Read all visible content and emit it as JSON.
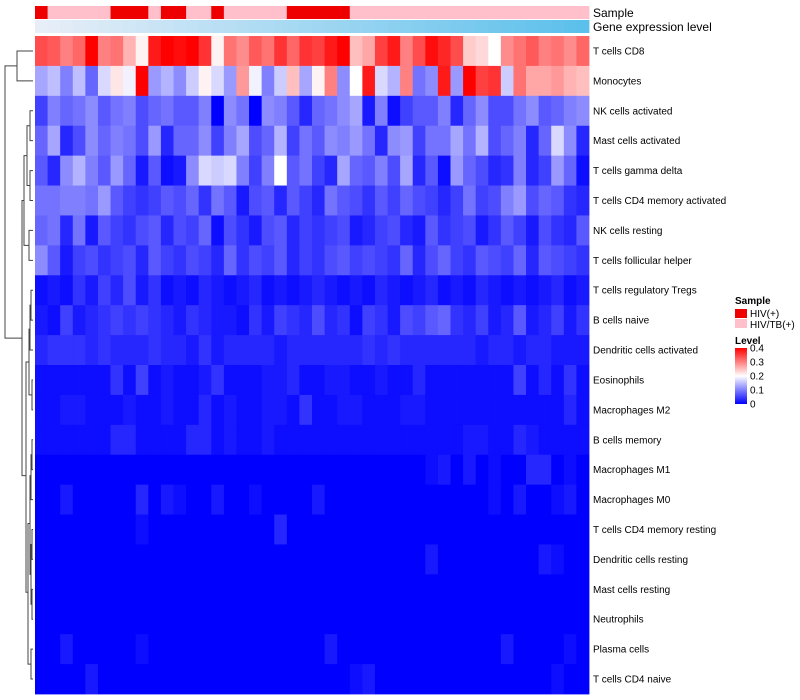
{
  "chart_data": {
    "type": "heatmap",
    "title": "",
    "column_annotations": [
      {
        "label": "Sample"
      },
      {
        "label": "Gene expression level"
      }
    ],
    "rows": [
      "T cells CD8",
      "Monocytes",
      "NK cells activated",
      "Mast cells activated",
      "T cells gamma delta",
      "T cells CD4 memory activated",
      "NK cells resting",
      "T cells follicular helper",
      "T cells regulatory  Tregs",
      "B cells naive",
      "Dendritic cells activated",
      "Eosinophils",
      "Macrophages M2",
      "B cells memory",
      "Macrophages M1",
      "Macrophages M0",
      "T cells CD4 memory resting",
      "Dendritic cells resting",
      "Mast cells resting",
      "Neutrophils",
      "Plasma cells",
      "T cells CD4 naive"
    ],
    "n_columns": 44,
    "sample_groups": [
      {
        "name": "HIV(+)",
        "color": "#ee0000"
      },
      {
        "name": "HIV/TB(+)",
        "color": "#ffc0cb"
      }
    ],
    "sample_assignment": [
      0,
      1,
      1,
      1,
      1,
      1,
      0,
      0,
      0,
      1,
      0,
      0,
      1,
      1,
      0,
      1,
      1,
      1,
      1,
      1,
      0,
      0,
      0,
      0,
      0,
      1,
      1,
      1,
      1,
      1,
      1,
      1,
      1,
      1,
      1,
      1,
      1,
      1,
      1,
      1,
      1,
      1,
      1,
      1
    ],
    "expression_gradient": {
      "start": "#e8eef8",
      "end": "#5bc0eb"
    },
    "color_scale": {
      "title": "Level",
      "min": 0,
      "max": 0.4,
      "ticks": [
        "0.4",
        "0.3",
        "0.2",
        "0.1",
        "0"
      ],
      "tick_values": [
        0.4,
        0.3,
        0.2,
        0.1,
        0
      ],
      "colors": [
        "#0000ff",
        "#ffffff",
        "#ff0000"
      ]
    },
    "legend": {
      "sample_title": "Sample",
      "level_title": "Level",
      "placement": "right"
    },
    "values": [
      [
        0.34,
        0.33,
        0.3,
        0.32,
        0.4,
        0.3,
        0.31,
        0.26,
        0.21,
        0.38,
        0.4,
        0.39,
        0.4,
        0.36,
        0.21,
        0.31,
        0.29,
        0.33,
        0.31,
        0.36,
        0.32,
        0.36,
        0.35,
        0.38,
        0.4,
        0.25,
        0.27,
        0.35,
        0.38,
        0.3,
        0.34,
        0.39,
        0.37,
        0.34,
        0.24,
        0.23,
        0.2,
        0.29,
        0.31,
        0.33,
        0.3,
        0.31,
        0.29,
        0.32
      ],
      [
        0.13,
        0.15,
        0.1,
        0.15,
        0.08,
        0.17,
        0.22,
        0.19,
        0.4,
        0.12,
        0.14,
        0.11,
        0.16,
        0.21,
        0.17,
        0.12,
        0.28,
        0.19,
        0.1,
        0.16,
        0.25,
        0.13,
        0.21,
        0.3,
        0.11,
        0.2,
        0.38,
        0.17,
        0.14,
        0.3,
        0.09,
        0.11,
        0.38,
        0.12,
        0.4,
        0.35,
        0.36,
        0.16,
        0.31,
        0.27,
        0.27,
        0.28,
        0.26,
        0.25
      ],
      [
        0.05,
        0.1,
        0.08,
        0.09,
        0.11,
        0.07,
        0.09,
        0.1,
        0.06,
        0.08,
        0.09,
        0.07,
        0.07,
        0.1,
        0.0,
        0.11,
        0.09,
        0.0,
        0.11,
        0.1,
        0.07,
        0.03,
        0.08,
        0.09,
        0.11,
        0.13,
        0.02,
        0.1,
        0.01,
        0.05,
        0.07,
        0.07,
        0.1,
        0.03,
        0.08,
        0.11,
        0.06,
        0.06,
        0.09,
        0.11,
        0.07,
        0.08,
        0.1,
        0.11
      ],
      [
        0.08,
        0.13,
        0.03,
        0.06,
        0.11,
        0.08,
        0.1,
        0.09,
        0.06,
        0.12,
        0.03,
        0.08,
        0.08,
        0.11,
        0.05,
        0.1,
        0.13,
        0.06,
        0.08,
        0.14,
        0.05,
        0.09,
        0.07,
        0.11,
        0.1,
        0.12,
        0.09,
        0.03,
        0.11,
        0.12,
        0.05,
        0.09,
        0.09,
        0.13,
        0.09,
        0.14,
        0.06,
        0.08,
        0.1,
        0.03,
        0.08,
        0.17,
        0.11,
        0.03
      ],
      [
        0.07,
        0.03,
        0.11,
        0.14,
        0.1,
        0.07,
        0.12,
        0.08,
        0.02,
        0.07,
        0.01,
        0.02,
        0.11,
        0.17,
        0.16,
        0.17,
        0.1,
        0.05,
        0.1,
        0.2,
        0.07,
        0.09,
        0.05,
        0.03,
        0.13,
        0.08,
        0.07,
        0.1,
        0.06,
        0.13,
        0.03,
        0.07,
        0.01,
        0.12,
        0.08,
        0.06,
        0.03,
        0.04,
        0.1,
        0.03,
        0.05,
        0.12,
        0.08,
        0.01
      ],
      [
        0.09,
        0.09,
        0.1,
        0.1,
        0.09,
        0.12,
        0.07,
        0.05,
        0.04,
        0.05,
        0.07,
        0.06,
        0.08,
        0.04,
        0.09,
        0.07,
        0.02,
        0.06,
        0.07,
        0.03,
        0.07,
        0.05,
        0.03,
        0.09,
        0.07,
        0.06,
        0.04,
        0.07,
        0.05,
        0.08,
        0.06,
        0.05,
        0.03,
        0.05,
        0.09,
        0.05,
        0.06,
        0.1,
        0.12,
        0.06,
        0.08,
        0.07,
        0.04,
        0.03
      ],
      [
        0.08,
        0.09,
        0.03,
        0.09,
        0.02,
        0.07,
        0.05,
        0.04,
        0.06,
        0.07,
        0.03,
        0.06,
        0.05,
        0.08,
        0.01,
        0.06,
        0.04,
        0.02,
        0.06,
        0.07,
        0.03,
        0.05,
        0.04,
        0.05,
        0.06,
        0.02,
        0.03,
        0.05,
        0.06,
        0.03,
        0.02,
        0.07,
        0.04,
        0.05,
        0.06,
        0.02,
        0.04,
        0.07,
        0.05,
        0.02,
        0.06,
        0.04,
        0.03,
        0.07
      ],
      [
        0.11,
        0.07,
        0.02,
        0.05,
        0.06,
        0.04,
        0.05,
        0.06,
        0.03,
        0.07,
        0.05,
        0.04,
        0.06,
        0.05,
        0.03,
        0.08,
        0.04,
        0.06,
        0.05,
        0.07,
        0.03,
        0.05,
        0.04,
        0.06,
        0.07,
        0.05,
        0.06,
        0.05,
        0.04,
        0.08,
        0.03,
        0.06,
        0.08,
        0.05,
        0.04,
        0.07,
        0.06,
        0.05,
        0.08,
        0.03,
        0.07,
        0.06,
        0.05,
        0.04
      ],
      [
        0.01,
        0.02,
        0.01,
        0.04,
        0.02,
        0.05,
        0.03,
        0.06,
        0.02,
        0.04,
        0.01,
        0.02,
        0.01,
        0.03,
        0.02,
        0.01,
        0.02,
        0.03,
        0.01,
        0.02,
        0.01,
        0.02,
        0.03,
        0.02,
        0.01,
        0.02,
        0.01,
        0.03,
        0.02,
        0.01,
        0.02,
        0.03,
        0.01,
        0.02,
        0.01,
        0.03,
        0.02,
        0.01,
        0.02,
        0.01,
        0.02,
        0.03,
        0.01,
        0.02
      ],
      [
        0.02,
        0.01,
        0.05,
        0.02,
        0.03,
        0.04,
        0.05,
        0.04,
        0.05,
        0.04,
        0.03,
        0.02,
        0.04,
        0.03,
        0.02,
        0.02,
        0.01,
        0.04,
        0.02,
        0.05,
        0.04,
        0.03,
        0.06,
        0.03,
        0.04,
        0.01,
        0.05,
        0.04,
        0.02,
        0.06,
        0.05,
        0.07,
        0.08,
        0.04,
        0.03,
        0.05,
        0.02,
        0.03,
        0.07,
        0.02,
        0.03,
        0.05,
        0.02,
        0.04
      ],
      [
        0.03,
        0.04,
        0.04,
        0.04,
        0.03,
        0.04,
        0.03,
        0.03,
        0.03,
        0.04,
        0.03,
        0.03,
        0.02,
        0.04,
        0.02,
        0.03,
        0.03,
        0.03,
        0.03,
        0.02,
        0.03,
        0.03,
        0.03,
        0.03,
        0.03,
        0.03,
        0.04,
        0.03,
        0.04,
        0.03,
        0.03,
        0.03,
        0.03,
        0.03,
        0.03,
        0.02,
        0.03,
        0.03,
        0.02,
        0.03,
        0.03,
        0.02,
        0.02,
        0.02
      ],
      [
        0.01,
        0.01,
        0.01,
        0.01,
        0.01,
        0.01,
        0.04,
        0.01,
        0.05,
        0.01,
        0.02,
        0.01,
        0.01,
        0.02,
        0.04,
        0.01,
        0.01,
        0.01,
        0.02,
        0.02,
        0.03,
        0.01,
        0.01,
        0.02,
        0.02,
        0.01,
        0.01,
        0.02,
        0.01,
        0.01,
        0.03,
        0.01,
        0.01,
        0.01,
        0.01,
        0.01,
        0.01,
        0.01,
        0.05,
        0.01,
        0.03,
        0.01,
        0.04,
        0.01
      ],
      [
        0.01,
        0.01,
        0.02,
        0.02,
        0.01,
        0.01,
        0.01,
        0.02,
        0.01,
        0.01,
        0.02,
        0.01,
        0.01,
        0.03,
        0.01,
        0.02,
        0.01,
        0.01,
        0.02,
        0.02,
        0.01,
        0.04,
        0.01,
        0.01,
        0.02,
        0.02,
        0.01,
        0.01,
        0.01,
        0.02,
        0.02,
        0.01,
        0.01,
        0.01,
        0.01,
        0.01,
        0.01,
        0.01,
        0.01,
        0.01,
        0.01,
        0.01,
        0.03,
        0.01
      ],
      [
        0.01,
        0.01,
        0.01,
        0.01,
        0.01,
        0.01,
        0.03,
        0.03,
        0.01,
        0.01,
        0.01,
        0.01,
        0.03,
        0.03,
        0.01,
        0.02,
        0.01,
        0.01,
        0.02,
        0.01,
        0.01,
        0.01,
        0.01,
        0.01,
        0.01,
        0.01,
        0.01,
        0.01,
        0.01,
        0.01,
        0.01,
        0.01,
        0.01,
        0.01,
        0.02,
        0.02,
        0.01,
        0.01,
        0.03,
        0.02,
        0.01,
        0.01,
        0.01,
        0.01
      ],
      [
        0.0,
        0.0,
        0.0,
        0.0,
        0.0,
        0.0,
        0.0,
        0.0,
        0.0,
        0.0,
        0.0,
        0.0,
        0.0,
        0.0,
        0.0,
        0.0,
        0.0,
        0.0,
        0.0,
        0.0,
        0.0,
        0.0,
        0.0,
        0.0,
        0.0,
        0.0,
        0.0,
        0.0,
        0.0,
        0.0,
        0.0,
        0.01,
        0.02,
        0.0,
        0.02,
        0.0,
        0.01,
        0.0,
        0.0,
        0.03,
        0.03,
        0.0,
        0.01,
        0.0
      ],
      [
        0.0,
        0.0,
        0.02,
        0.0,
        0.0,
        0.0,
        0.0,
        0.0,
        0.03,
        0.0,
        0.02,
        0.01,
        0.0,
        0.0,
        0.02,
        0.0,
        0.0,
        0.01,
        0.0,
        0.0,
        0.0,
        0.0,
        0.02,
        0.0,
        0.0,
        0.0,
        0.0,
        0.0,
        0.0,
        0.0,
        0.0,
        0.0,
        0.0,
        0.0,
        0.0,
        0.0,
        0.01,
        0.0,
        0.02,
        0.0,
        0.0,
        0.01,
        0.02,
        0.0
      ],
      [
        0.0,
        0.0,
        0.0,
        0.0,
        0.0,
        0.0,
        0.0,
        0.0,
        0.01,
        0.0,
        0.0,
        0.0,
        0.0,
        0.0,
        0.0,
        0.0,
        0.0,
        0.0,
        0.0,
        0.03,
        0.0,
        0.0,
        0.0,
        0.0,
        0.0,
        0.0,
        0.0,
        0.0,
        0.0,
        0.0,
        0.0,
        0.0,
        0.0,
        0.0,
        0.0,
        0.0,
        0.0,
        0.0,
        0.0,
        0.0,
        0.0,
        0.0,
        0.0,
        0.0
      ],
      [
        0.0,
        0.0,
        0.0,
        0.0,
        0.0,
        0.0,
        0.0,
        0.0,
        0.0,
        0.0,
        0.0,
        0.0,
        0.0,
        0.0,
        0.0,
        0.0,
        0.0,
        0.0,
        0.0,
        0.0,
        0.0,
        0.0,
        0.0,
        0.0,
        0.0,
        0.0,
        0.0,
        0.0,
        0.0,
        0.0,
        0.0,
        0.02,
        0.0,
        0.0,
        0.0,
        0.0,
        0.0,
        0.0,
        0.0,
        0.0,
        0.02,
        0.01,
        0.0,
        0.0
      ],
      [
        0.0,
        0.0,
        0.0,
        0.0,
        0.0,
        0.0,
        0.0,
        0.0,
        0.0,
        0.0,
        0.0,
        0.0,
        0.0,
        0.0,
        0.0,
        0.0,
        0.0,
        0.0,
        0.0,
        0.0,
        0.0,
        0.0,
        0.0,
        0.0,
        0.0,
        0.0,
        0.0,
        0.0,
        0.0,
        0.0,
        0.0,
        0.0,
        0.0,
        0.0,
        0.0,
        0.0,
        0.0,
        0.0,
        0.0,
        0.0,
        0.0,
        0.0,
        0.0,
        0.0
      ],
      [
        0.0,
        0.0,
        0.0,
        0.0,
        0.0,
        0.0,
        0.0,
        0.0,
        0.0,
        0.0,
        0.0,
        0.0,
        0.0,
        0.0,
        0.0,
        0.0,
        0.0,
        0.0,
        0.0,
        0.0,
        0.0,
        0.0,
        0.0,
        0.0,
        0.0,
        0.0,
        0.0,
        0.0,
        0.0,
        0.0,
        0.0,
        0.0,
        0.0,
        0.0,
        0.0,
        0.0,
        0.0,
        0.0,
        0.0,
        0.0,
        0.0,
        0.0,
        0.0,
        0.0
      ],
      [
        0.0,
        0.0,
        0.02,
        0.0,
        0.0,
        0.0,
        0.0,
        0.0,
        0.01,
        0.0,
        0.0,
        0.0,
        0.0,
        0.0,
        0.0,
        0.0,
        0.0,
        0.0,
        0.0,
        0.0,
        0.0,
        0.0,
        0.0,
        0.02,
        0.0,
        0.0,
        0.0,
        0.0,
        0.0,
        0.0,
        0.0,
        0.0,
        0.0,
        0.0,
        0.0,
        0.0,
        0.0,
        0.02,
        0.0,
        0.0,
        0.0,
        0.0,
        0.01,
        0.0
      ],
      [
        0.0,
        0.0,
        0.0,
        0.0,
        0.02,
        0.0,
        0.0,
        0.0,
        0.0,
        0.0,
        0.0,
        0.0,
        0.0,
        0.0,
        0.0,
        0.0,
        0.0,
        0.0,
        0.0,
        0.0,
        0.0,
        0.0,
        0.0,
        0.0,
        0.0,
        0.01,
        0.02,
        0.0,
        0.0,
        0.0,
        0.0,
        0.0,
        0.0,
        0.0,
        0.0,
        0.0,
        0.0,
        0.0,
        0.0,
        0.0,
        0.0,
        0.01,
        0.0,
        0.0
      ]
    ]
  }
}
